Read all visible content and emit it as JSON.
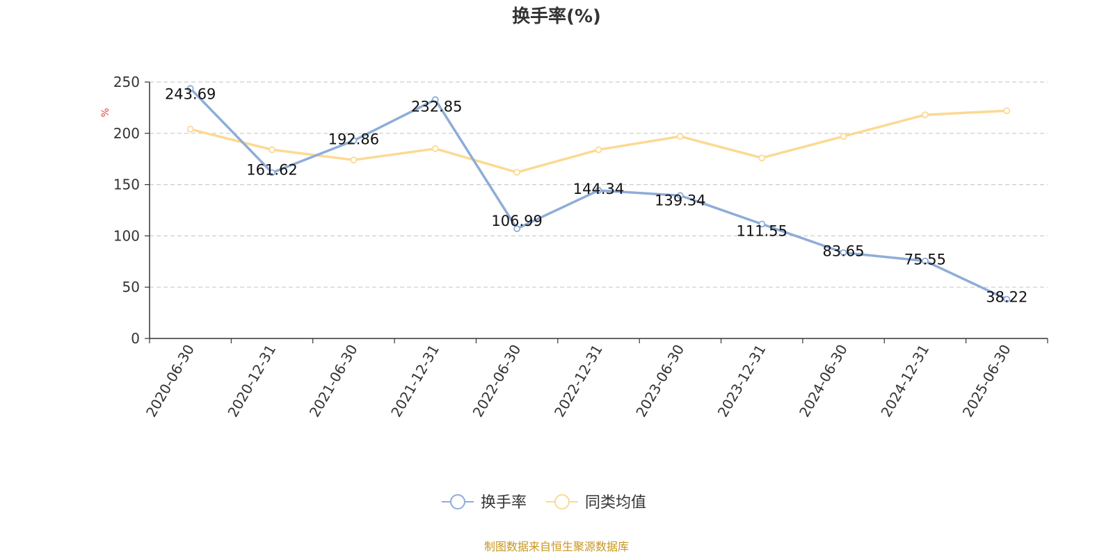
{
  "colors": {
    "series1": "#8eacd8",
    "series2": "#fcd992",
    "source": "#c8961e",
    "ylabel": "#e83a3a"
  },
  "footer": {
    "source": "制图数据来自恒生聚源数据库"
  },
  "chart_data": {
    "type": "line",
    "title": "换手率(%)",
    "ylabel": "%",
    "xlabel": "",
    "ylim": [
      0,
      250
    ],
    "yticks": [
      0,
      50,
      100,
      150,
      200,
      250
    ],
    "grid": true,
    "legend_position": "bottom-center",
    "categories": [
      "2020-06-30",
      "2020-12-31",
      "2021-06-30",
      "2021-12-31",
      "2022-06-30",
      "2022-12-31",
      "2023-06-30",
      "2023-12-31",
      "2024-06-30",
      "2024-12-31",
      "2025-06-30"
    ],
    "series": [
      {
        "name": "换手率",
        "values": [
          243.69,
          161.62,
          192.86,
          232.85,
          106.99,
          144.34,
          139.34,
          111.55,
          83.65,
          75.55,
          38.22
        ],
        "labels": [
          "243.69",
          "161.62",
          "192.86",
          "232.85",
          "106.99",
          "144.34",
          "139.34",
          "111.55",
          "83.65",
          "75.55",
          "38.22"
        ],
        "show_labels": true
      },
      {
        "name": "同类均值",
        "values": [
          204,
          184,
          174,
          185,
          162,
          184,
          197,
          176,
          197,
          218,
          222
        ],
        "show_labels": false
      }
    ]
  }
}
